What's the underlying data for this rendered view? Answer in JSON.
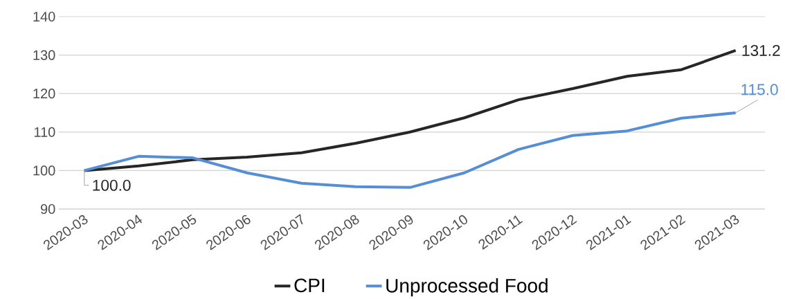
{
  "chart_data": {
    "type": "line",
    "categories": [
      "2020-03",
      "2020-04",
      "2020-05",
      "2020-06",
      "2020-07",
      "2020-08",
      "2020-09",
      "2020-10",
      "2020-11",
      "2020-12",
      "2021-01",
      "2021-02",
      "2021-03"
    ],
    "series": [
      {
        "name": "CPI",
        "color": "#262626",
        "values": [
          100.0,
          101.2,
          102.8,
          103.5,
          104.6,
          107.1,
          110.0,
          113.7,
          118.4,
          121.3,
          124.5,
          126.2,
          131.2
        ],
        "value_labels": [
          "100.0",
          null,
          null,
          null,
          null,
          null,
          null,
          null,
          null,
          null,
          null,
          null,
          "131.2"
        ]
      },
      {
        "name": "Unprocessed Food",
        "color": "#558ed5",
        "values": [
          100.0,
          103.7,
          103.3,
          99.4,
          96.7,
          95.8,
          95.6,
          99.4,
          105.5,
          109.1,
          110.3,
          113.6,
          115.0
        ],
        "value_labels": [
          null,
          null,
          null,
          null,
          null,
          null,
          null,
          null,
          null,
          null,
          null,
          null,
          "115.0"
        ]
      }
    ],
    "ylim": [
      90,
      140
    ],
    "yticks": [
      90,
      100,
      110,
      120,
      130,
      140
    ],
    "grid": "y",
    "legend": "bottom",
    "marker": "none",
    "line_style": "solid"
  }
}
